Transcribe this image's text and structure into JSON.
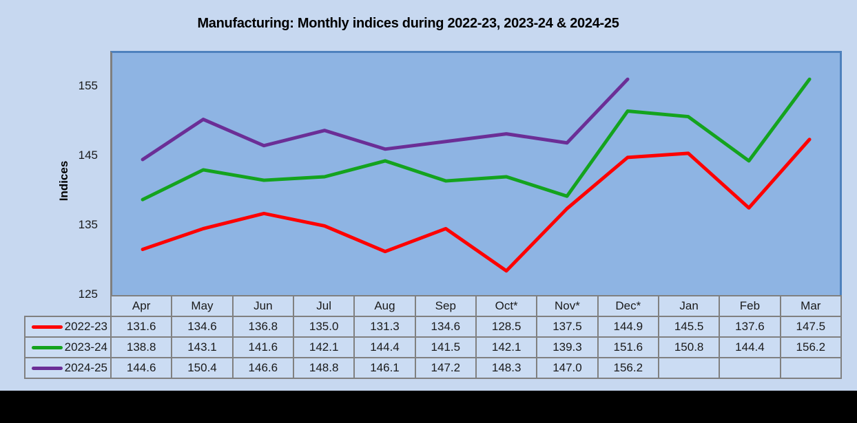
{
  "title": "Manufacturing: Monthly indices during 2022-23, 2023-24 & 2024-25",
  "chart_data": {
    "type": "line",
    "title": "Manufacturing: Monthly indices during 2022-23, 2023-24 & 2024-25",
    "xlabel": "",
    "ylabel": "Indices",
    "categories": [
      "Apr",
      "May",
      "Jun",
      "Jul",
      "Aug",
      "Sep",
      "Oct*",
      "Nov*",
      "Dec*",
      "Jan",
      "Feb",
      "Mar"
    ],
    "series": [
      {
        "name": "2022-23",
        "color": "#fe0000",
        "values": [
          131.6,
          134.6,
          136.8,
          135.0,
          131.3,
          134.6,
          128.5,
          137.5,
          144.9,
          145.5,
          137.6,
          147.5
        ]
      },
      {
        "name": "2023-24",
        "color": "#14a31e",
        "values": [
          138.8,
          143.1,
          141.6,
          142.1,
          144.4,
          141.5,
          142.1,
          139.3,
          151.6,
          150.8,
          144.4,
          156.2
        ]
      },
      {
        "name": "2024-25",
        "color": "#6b2e96",
        "values": [
          144.6,
          150.4,
          146.6,
          148.8,
          146.1,
          147.2,
          148.3,
          147.0,
          156.2,
          null,
          null,
          null
        ]
      }
    ],
    "ylim": [
      125,
      160
    ],
    "yticks": [
      125,
      135,
      145,
      155
    ],
    "grid": false,
    "legend_position": "table-rows-left",
    "value_decimals": 1
  },
  "colors": {
    "canvas_bg": "#c7d8f0",
    "plot_bg": "#8eb4e3",
    "plot_border_blue": "#4e81bd",
    "axis_gray": "#7f7f7f",
    "table_border": "#808080",
    "table_cell_bg": "#cbdcf3",
    "bottom_bar": "#000000"
  }
}
